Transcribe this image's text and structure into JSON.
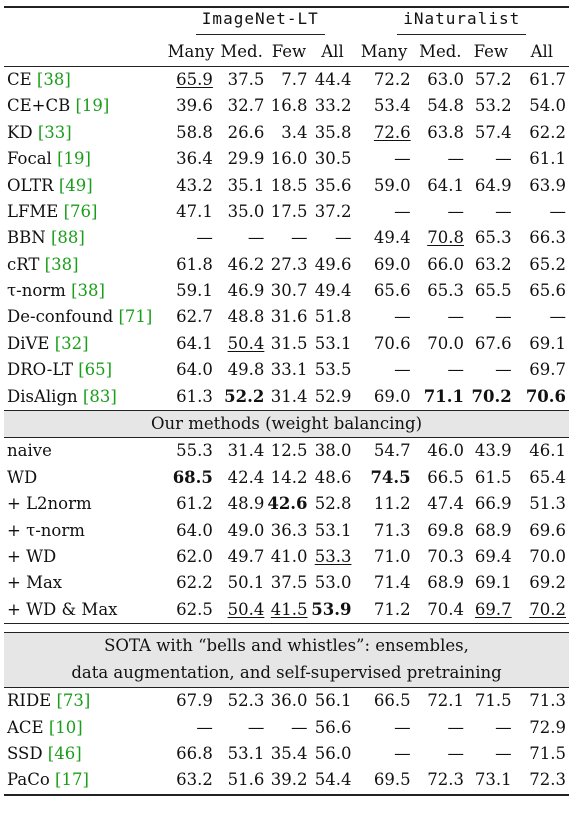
{
  "header": {
    "groups": [
      "ImageNet-LT",
      "iNaturalist"
    ],
    "columns": [
      "Many",
      "Med.",
      "Few",
      "All",
      "Many",
      "Med.",
      "Few",
      "All"
    ]
  },
  "baseline_rows": [
    {
      "method": "CE",
      "cite": "[38]",
      "values": [
        "65.9",
        "37.5",
        "7.7",
        "44.4",
        "72.2",
        "63.0",
        "57.2",
        "61.7"
      ],
      "bold": [],
      "underline": [
        0
      ]
    },
    {
      "method": "CE+CB",
      "cite": "[19]",
      "values": [
        "39.6",
        "32.7",
        "16.8",
        "33.2",
        "53.4",
        "54.8",
        "53.2",
        "54.0"
      ],
      "bold": [],
      "underline": []
    },
    {
      "method": "KD",
      "cite": "[33]",
      "values": [
        "58.8",
        "26.6",
        "3.4",
        "35.8",
        "72.6",
        "63.8",
        "57.4",
        "62.2"
      ],
      "bold": [],
      "underline": [
        4
      ]
    },
    {
      "method": "Focal",
      "cite": "[19]",
      "values": [
        "36.4",
        "29.9",
        "16.0",
        "30.5",
        "—",
        "—",
        "—",
        "61.1"
      ],
      "bold": [],
      "underline": []
    },
    {
      "method": "OLTR",
      "cite": "[49]",
      "values": [
        "43.2",
        "35.1",
        "18.5",
        "35.6",
        "59.0",
        "64.1",
        "64.9",
        "63.9"
      ],
      "bold": [],
      "underline": []
    },
    {
      "method": "LFME",
      "cite": "[76]",
      "values": [
        "47.1",
        "35.0",
        "17.5",
        "37.2",
        "—",
        "—",
        "—",
        "—"
      ],
      "bold": [],
      "underline": []
    },
    {
      "method": "BBN",
      "cite": "[88]",
      "values": [
        "—",
        "—",
        "—",
        "—",
        "49.4",
        "70.8",
        "65.3",
        "66.3"
      ],
      "bold": [],
      "underline": [
        5
      ]
    },
    {
      "method": "cRT",
      "cite": "[38]",
      "values": [
        "61.8",
        "46.2",
        "27.3",
        "49.6",
        "69.0",
        "66.0",
        "63.2",
        "65.2"
      ],
      "bold": [],
      "underline": []
    },
    {
      "method": "τ-norm",
      "cite": "[38]",
      "values": [
        "59.1",
        "46.9",
        "30.7",
        "49.4",
        "65.6",
        "65.3",
        "65.5",
        "65.6"
      ],
      "bold": [],
      "underline": []
    },
    {
      "method": "De-confound",
      "cite": "[71]",
      "values": [
        "62.7",
        "48.8",
        "31.6",
        "51.8",
        "—",
        "—",
        "—",
        "—"
      ],
      "bold": [],
      "underline": []
    },
    {
      "method": "DiVE",
      "cite": "[32]",
      "values": [
        "64.1",
        "50.4",
        "31.5",
        "53.1",
        "70.6",
        "70.0",
        "67.6",
        "69.1"
      ],
      "bold": [],
      "underline": [
        1
      ]
    },
    {
      "method": "DRO-LT",
      "cite": "[65]",
      "values": [
        "64.0",
        "49.8",
        "33.1",
        "53.5",
        "—",
        "—",
        "—",
        "69.7"
      ],
      "bold": [],
      "underline": []
    },
    {
      "method": "DisAlign",
      "cite": "[83]",
      "values": [
        "61.3",
        "52.2",
        "31.4",
        "52.9",
        "69.0",
        "71.1",
        "70.2",
        "70.6"
      ],
      "bold": [
        1,
        5,
        6,
        7
      ],
      "underline": []
    }
  ],
  "our_section_title": "Our methods (weight balancing)",
  "our_rows": [
    {
      "method": "naive",
      "cite": "",
      "values": [
        "55.3",
        "31.4",
        "12.5",
        "38.0",
        "54.7",
        "46.0",
        "43.9",
        "46.1"
      ],
      "bold": [],
      "underline": []
    },
    {
      "method": "WD",
      "cite": "",
      "values": [
        "68.5",
        "42.4",
        "14.2",
        "48.6",
        "74.5",
        "66.5",
        "61.5",
        "65.4"
      ],
      "bold": [
        0,
        4
      ],
      "underline": []
    },
    {
      "method": "+ L2norm",
      "cite": "",
      "values": [
        "61.2",
        "48.9",
        "42.6",
        "52.8",
        "11.2",
        "47.4",
        "66.9",
        "51.3"
      ],
      "bold": [
        2
      ],
      "underline": []
    },
    {
      "method": "+ τ-norm",
      "cite": "",
      "values": [
        "64.0",
        "49.0",
        "36.3",
        "53.1",
        "71.3",
        "69.8",
        "68.9",
        "69.6"
      ],
      "bold": [],
      "underline": []
    },
    {
      "method": "+ WD",
      "cite": "",
      "values": [
        "62.0",
        "49.7",
        "41.0",
        "53.3",
        "71.0",
        "70.3",
        "69.4",
        "70.0"
      ],
      "bold": [],
      "underline": [
        3
      ]
    },
    {
      "method": "+ Max",
      "cite": "",
      "values": [
        "62.2",
        "50.1",
        "37.5",
        "53.0",
        "71.4",
        "68.9",
        "69.1",
        "69.2"
      ],
      "bold": [],
      "underline": []
    },
    {
      "method": "+ WD & Max",
      "cite": "",
      "values": [
        "62.5",
        "50.4",
        "41.5",
        "53.9",
        "71.2",
        "70.4",
        "69.7",
        "70.2"
      ],
      "bold": [
        3
      ],
      "underline": [
        1,
        2,
        6,
        7
      ]
    }
  ],
  "sota_title_line1": "SOTA with “bells and whistles”: ensembles,",
  "sota_title_line2": "data augmentation, and self-supervised pretraining",
  "sota_rows": [
    {
      "method": "RIDE",
      "cite": "[73]",
      "values": [
        "67.9",
        "52.3",
        "36.0",
        "56.1",
        "66.5",
        "72.1",
        "71.5",
        "71.3"
      ],
      "bold": [],
      "underline": []
    },
    {
      "method": "ACE",
      "cite": "[10]",
      "values": [
        "—",
        "—",
        "—",
        "56.6",
        "—",
        "—",
        "—",
        "72.9"
      ],
      "bold": [],
      "underline": []
    },
    {
      "method": "SSD",
      "cite": "[46]",
      "values": [
        "66.8",
        "53.1",
        "35.4",
        "56.0",
        "—",
        "—",
        "—",
        "71.5"
      ],
      "bold": [],
      "underline": []
    },
    {
      "method": "PaCo",
      "cite": "[17]",
      "values": [
        "63.2",
        "51.6",
        "39.2",
        "54.4",
        "69.5",
        "72.3",
        "73.1",
        "72.3"
      ],
      "bold": [],
      "underline": []
    }
  ]
}
